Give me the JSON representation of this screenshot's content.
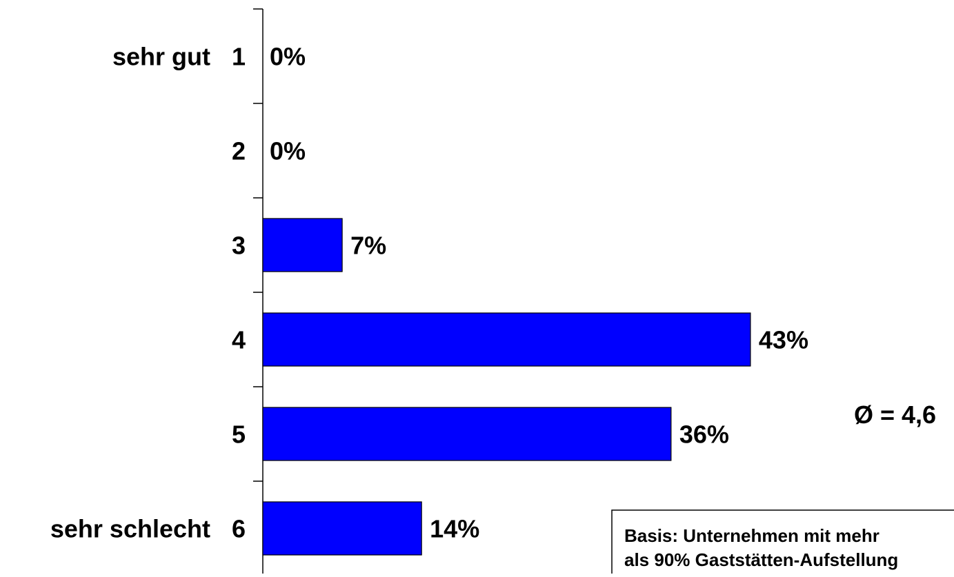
{
  "chart_data": {
    "type": "bar",
    "orientation": "horizontal",
    "categories": [
      "1",
      "2",
      "3",
      "4",
      "5",
      "6"
    ],
    "category_labels": [
      "sehr gut",
      "",
      "",
      "",
      "",
      "sehr schlecht"
    ],
    "values": [
      0,
      0,
      7,
      43,
      36,
      14
    ],
    "value_labels": [
      "0%",
      "0%",
      "7%",
      "43%",
      "36%",
      "14%"
    ],
    "title": "",
    "xlabel": "",
    "ylabel": "",
    "xlim": [
      0,
      100
    ],
    "grid": false,
    "bar_color": "#0000ff",
    "annotations": {
      "mean": "Ø = 4,6",
      "basis_line1": "Basis: Unternehmen mit mehr",
      "basis_line2": "als 90% Gaststätten-Aufstellung"
    }
  }
}
